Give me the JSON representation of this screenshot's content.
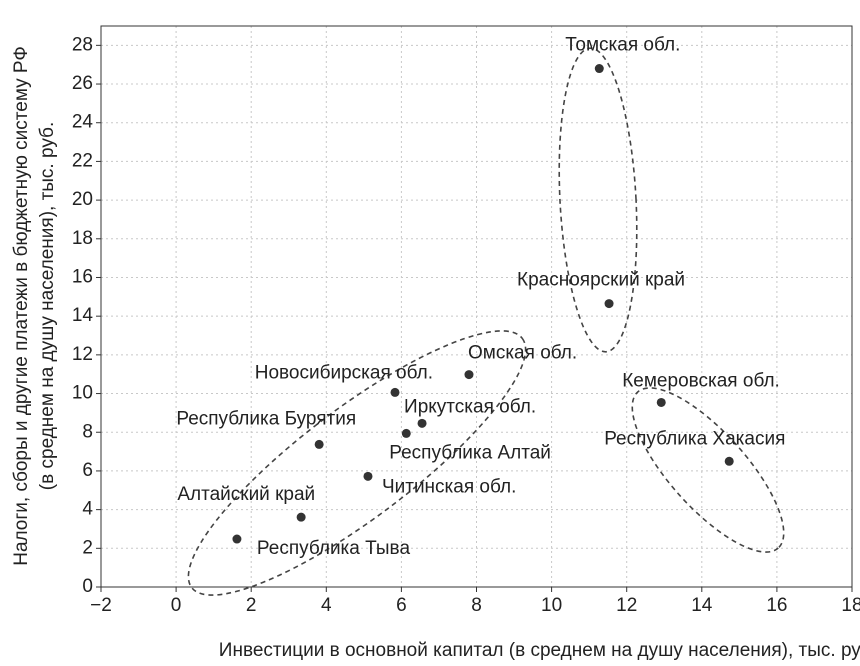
{
  "chart_data": {
    "type": "scatter",
    "x_label": "Инвестиции в основной капитал (в среднем на душу населения), тыс. руб.",
    "y_label": [
      "Налоги, сборы и другие платежи в бюджетную систему РФ",
      "(в среднем на душу населения), тыс. руб."
    ],
    "color": "#333333",
    "labels": [
      "Томская обл.",
      "Красноярский край",
      "Кемеровская обл.",
      "Республика Хакасия",
      "Омская обл.",
      "Новосибирская обл.",
      "Иркутская обл.",
      "Республика Алтай",
      "Республика Бурятия",
      "Читинская обл.",
      "Алтайский край",
      "Республика Тыва"
    ],
    "x": [
      11.27,
      11.53,
      12.92,
      14.73,
      7.8,
      5.83,
      6.55,
      6.13,
      3.81,
      5.11,
      3.33,
      1.62
    ],
    "values": [
      26.8,
      14.65,
      9.54,
      6.5,
      10.98,
      10.06,
      8.46,
      7.94,
      7.37,
      5.72,
      3.61,
      2.48
    ],
    "xlim": [
      -2,
      18
    ],
    "xticks": [
      {
        "value": -2,
        "label": "−2"
      },
      0,
      2,
      4,
      6,
      8,
      10,
      12,
      14,
      16,
      18
    ],
    "ylim": [
      0,
      29
    ],
    "yticks": [
      0,
      2,
      4,
      6,
      8,
      10,
      12,
      14,
      16,
      18,
      20,
      22,
      24,
      26,
      28
    ],
    "grid": true
  }
}
